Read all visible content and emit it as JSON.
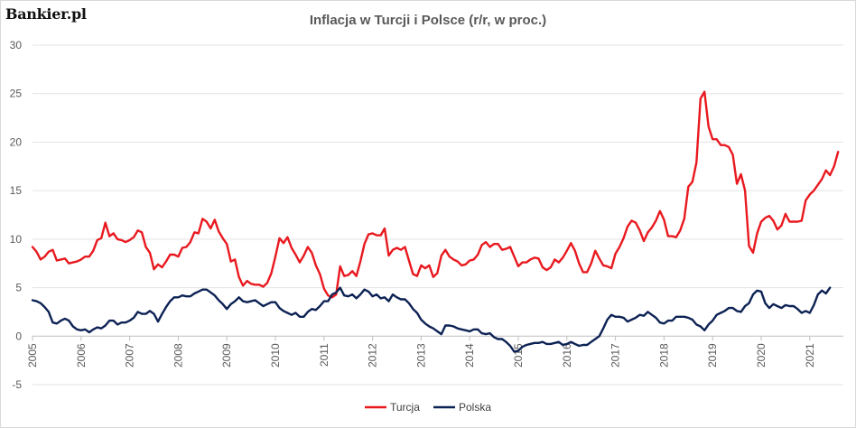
{
  "brand": {
    "logo_text": "Bankier.pl"
  },
  "chart_data": {
    "type": "line",
    "title": "Inflacja w Turcji i Polsce (r/r, w proc.)",
    "xlabel": "",
    "ylabel": "",
    "ylim": [
      -5,
      30
    ],
    "y_ticks": [
      -5,
      0,
      5,
      10,
      15,
      20,
      25,
      30
    ],
    "x_ticks": [
      "2005",
      "2006",
      "2007",
      "2008",
      "2009",
      "2010",
      "2011",
      "2012",
      "2013",
      "2014",
      "2015",
      "2016",
      "2017",
      "2018",
      "2019",
      "2020",
      "2021"
    ],
    "x_start": "2005-01",
    "frequency": "monthly",
    "grid": "horizontal",
    "legend_position": "bottom",
    "series": [
      {
        "name": "Turcja",
        "color": "#e8191f",
        "values": [
          9.2,
          8.7,
          7.9,
          8.2,
          8.7,
          8.9,
          7.8,
          7.9,
          8.0,
          7.5,
          7.6,
          7.7,
          7.9,
          8.2,
          8.2,
          8.8,
          9.9,
          10.1,
          11.7,
          10.3,
          10.6,
          10.0,
          9.9,
          9.7,
          9.9,
          10.2,
          10.9,
          10.7,
          9.2,
          8.6,
          6.9,
          7.4,
          7.1,
          7.7,
          8.4,
          8.4,
          8.2,
          9.1,
          9.2,
          9.7,
          10.7,
          10.6,
          12.1,
          11.8,
          11.1,
          12.0,
          10.8,
          10.1,
          9.5,
          7.7,
          7.9,
          6.1,
          5.2,
          5.7,
          5.4,
          5.3,
          5.3,
          5.1,
          5.5,
          6.5,
          8.2,
          10.1,
          9.6,
          10.2,
          9.1,
          8.4,
          7.6,
          8.3,
          9.2,
          8.6,
          7.3,
          6.4,
          4.9,
          4.2,
          4.0,
          4.3,
          7.2,
          6.2,
          6.3,
          6.7,
          6.2,
          7.7,
          9.5,
          10.5,
          10.6,
          10.4,
          10.4,
          11.1,
          8.3,
          8.9,
          9.1,
          8.9,
          9.2,
          7.8,
          6.4,
          6.2,
          7.3,
          7.0,
          7.3,
          6.1,
          6.5,
          8.3,
          8.9,
          8.2,
          7.9,
          7.7,
          7.3,
          7.4,
          7.8,
          7.9,
          8.4,
          9.4,
          9.7,
          9.2,
          9.5,
          9.5,
          8.9,
          9.0,
          9.2,
          8.2,
          7.2,
          7.6,
          7.6,
          7.9,
          8.1,
          8.0,
          7.1,
          6.8,
          7.1,
          7.9,
          7.6,
          8.1,
          8.8,
          9.6,
          8.8,
          7.5,
          6.6,
          6.6,
          7.5,
          8.8,
          8.0,
          7.3,
          7.2,
          7.0,
          8.5,
          9.2,
          10.1,
          11.3,
          11.9,
          11.7,
          10.9,
          9.8,
          10.7,
          11.2,
          11.9,
          12.9,
          12.0,
          10.3,
          10.3,
          10.2,
          10.9,
          12.1,
          15.4,
          15.9,
          17.9,
          24.5,
          25.2,
          21.6,
          20.3,
          20.3,
          19.7,
          19.7,
          19.5,
          18.7,
          15.7,
          16.7,
          15.0,
          9.3,
          8.6,
          10.6,
          11.8,
          12.2,
          12.4,
          11.9,
          11.0,
          11.4,
          12.6,
          11.8,
          11.8,
          11.8,
          11.9,
          14.0,
          14.6,
          15.0,
          15.6,
          16.2,
          17.1,
          16.6,
          17.5,
          19.0
        ]
      },
      {
        "name": "Polska",
        "color": "#0d2254",
        "values": [
          3.7,
          3.6,
          3.4,
          3.0,
          2.5,
          1.4,
          1.3,
          1.6,
          1.8,
          1.6,
          1.0,
          0.7,
          0.6,
          0.7,
          0.4,
          0.7,
          0.9,
          0.8,
          1.1,
          1.6,
          1.6,
          1.2,
          1.4,
          1.4,
          1.6,
          1.9,
          2.5,
          2.3,
          2.3,
          2.6,
          2.3,
          1.5,
          2.3,
          3.0,
          3.6,
          4.0,
          4.0,
          4.2,
          4.1,
          4.1,
          4.4,
          4.6,
          4.8,
          4.8,
          4.5,
          4.2,
          3.7,
          3.3,
          2.8,
          3.3,
          3.6,
          4.0,
          3.6,
          3.5,
          3.6,
          3.7,
          3.4,
          3.1,
          3.3,
          3.5,
          3.5,
          2.9,
          2.6,
          2.4,
          2.2,
          2.4,
          2.0,
          2.0,
          2.5,
          2.8,
          2.7,
          3.1,
          3.6,
          3.6,
          4.3,
          4.5,
          5.0,
          4.2,
          4.1,
          4.3,
          3.9,
          4.3,
          4.8,
          4.6,
          4.1,
          4.3,
          3.9,
          4.0,
          3.6,
          4.3,
          4.0,
          3.8,
          3.8,
          3.4,
          2.8,
          2.4,
          1.7,
          1.3,
          1.0,
          0.8,
          0.5,
          0.2,
          1.1,
          1.1,
          1.0,
          0.8,
          0.7,
          0.6,
          0.5,
          0.7,
          0.7,
          0.3,
          0.2,
          0.3,
          -0.1,
          -0.3,
          -0.3,
          -0.6,
          -1.0,
          -1.6,
          -1.5,
          -1.1,
          -0.9,
          -0.8,
          -0.7,
          -0.7,
          -0.6,
          -0.8,
          -0.8,
          -0.7,
          -0.6,
          -0.9,
          -0.8,
          -0.6,
          -0.8,
          -1.0,
          -0.9,
          -0.9,
          -0.6,
          -0.3,
          0.0,
          0.8,
          1.7,
          2.2,
          2.0,
          2.0,
          1.9,
          1.5,
          1.7,
          1.9,
          2.2,
          2.1,
          2.5,
          2.2,
          1.9,
          1.4,
          1.3,
          1.6,
          1.6,
          2.0,
          2.0,
          2.0,
          1.9,
          1.7,
          1.2,
          1.0,
          0.6,
          1.2,
          1.6,
          2.2,
          2.4,
          2.6,
          2.9,
          2.9,
          2.6,
          2.5,
          3.1,
          3.4,
          4.3,
          4.7,
          4.6,
          3.4,
          2.9,
          3.3,
          3.1,
          2.9,
          3.2,
          3.1,
          3.1,
          2.8,
          2.4,
          2.6,
          2.4,
          3.2,
          4.3,
          4.7,
          4.4,
          5.0
        ]
      }
    ]
  }
}
